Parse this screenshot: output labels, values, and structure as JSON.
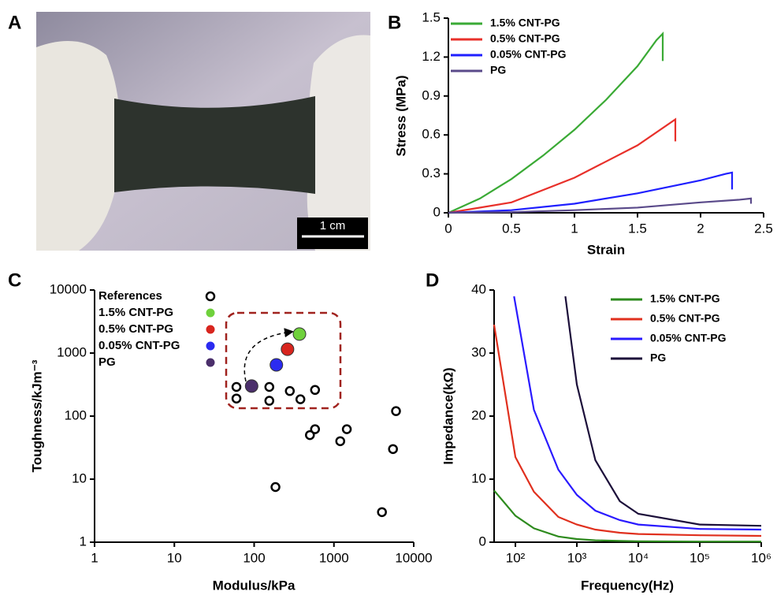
{
  "photo": {
    "panel_label": "A",
    "scale_bar_label": "1 cm"
  },
  "chart_data": [
    {
      "type": "line",
      "panel_label": "B",
      "x_label": "Strain",
      "y_label": "Stress (MPa)",
      "xlim": [
        0,
        2.5
      ],
      "ylim": [
        0,
        1.5
      ],
      "xticks": [
        0,
        0.5,
        1,
        1.5,
        2,
        2.5
      ],
      "yticks": [
        0,
        0.3,
        0.6,
        0.9,
        1.2,
        1.5
      ],
      "legend": "top-left",
      "series": [
        {
          "name": "1.5% CNT-PG",
          "color": "#3aaa35",
          "x": [
            0,
            0.25,
            0.5,
            0.75,
            1.0,
            1.25,
            1.5,
            1.65,
            1.69,
            1.7,
            1.7
          ],
          "values": [
            0,
            0.11,
            0.26,
            0.44,
            0.64,
            0.87,
            1.13,
            1.33,
            1.37,
            1.38,
            1.17
          ]
        },
        {
          "name": "0.5% CNT-PG",
          "color": "#e8302a",
          "x": [
            0,
            0.5,
            1.0,
            1.5,
            1.8,
            1.8
          ],
          "values": [
            0,
            0.08,
            0.27,
            0.52,
            0.72,
            0.55
          ]
        },
        {
          "name": "0.05% CNT-PG",
          "color": "#1f1fff",
          "x": [
            0,
            0.5,
            1.0,
            1.5,
            2.0,
            2.2,
            2.25,
            2.25
          ],
          "values": [
            0,
            0.02,
            0.07,
            0.15,
            0.25,
            0.3,
            0.31,
            0.18
          ]
        },
        {
          "name": "PG",
          "color": "#5a4a8a",
          "x": [
            0,
            0.5,
            1.0,
            1.5,
            2.0,
            2.3,
            2.4,
            2.4
          ],
          "values": [
            0,
            0.005,
            0.02,
            0.04,
            0.08,
            0.1,
            0.11,
            0.07
          ]
        }
      ]
    },
    {
      "type": "scatter",
      "panel_label": "C",
      "x_label": "Modulus/kPa",
      "y_label": "Toughness/kJm⁻³",
      "xscale": "log",
      "yscale": "log",
      "xlim": [
        1,
        10000
      ],
      "ylim": [
        1,
        10000
      ],
      "xticks": [
        1,
        10,
        100,
        1000,
        10000
      ],
      "yticks": [
        1,
        10,
        100,
        1000,
        10000
      ],
      "legend": "top-left",
      "series": [
        {
          "name": "References",
          "color": "#000000",
          "marker": "open",
          "x": [
            60,
            60,
            155,
            155,
            280,
            380,
            580,
            500,
            580,
            1200,
            1450,
            5500,
            6000,
            185,
            4000
          ],
          "values": [
            290,
            190,
            290,
            175,
            250,
            185,
            260,
            50,
            62,
            40,
            62,
            30,
            120,
            7.5,
            3
          ]
        },
        {
          "name": "1.5% CNT-PG",
          "color": "#6fd13c",
          "marker": "filled",
          "x": [
            370
          ],
          "values": [
            2000
          ]
        },
        {
          "name": "0.5% CNT-PG",
          "color": "#d8251e",
          "marker": "filled",
          "x": [
            262
          ],
          "values": [
            1150
          ]
        },
        {
          "name": "0.05% CNT-PG",
          "color": "#2b2bf0",
          "marker": "filled",
          "x": [
            190
          ],
          "values": [
            650
          ]
        },
        {
          "name": "PG",
          "color": "#4b2f6b",
          "marker": "filled",
          "x": [
            93
          ],
          "values": [
            300
          ]
        }
      ]
    },
    {
      "type": "line",
      "panel_label": "D",
      "x_label": "Frequency(Hz)",
      "y_label": "Impedance(kΩ)",
      "xscale": "log",
      "xlim": [
        45,
        1000000
      ],
      "ylim": [
        0,
        40
      ],
      "xticks": [
        {
          "value": 100,
          "label": "10²"
        },
        {
          "value": 1000,
          "label": "10³"
        },
        {
          "value": 10000,
          "label": "10⁴"
        },
        {
          "value": 100000,
          "label": "10⁵"
        },
        {
          "value": 1000000,
          "label": "10⁶"
        }
      ],
      "yticks": [
        0,
        10,
        20,
        30,
        40
      ],
      "legend": "top-right",
      "series": [
        {
          "name": "1.5% CNT-PG",
          "color": "#2e8b1e",
          "x": [
            45,
            100,
            200,
            500,
            1000,
            2000,
            5000,
            10000,
            100000,
            1000000
          ],
          "values": [
            8.2,
            4.2,
            2.2,
            0.9,
            0.5,
            0.3,
            0.2,
            0.15,
            0.1,
            0.1
          ]
        },
        {
          "name": "0.5% CNT-PG",
          "color": "#e0301e",
          "x": [
            45,
            100,
            200,
            500,
            1000,
            2000,
            5000,
            10000,
            100000,
            1000000
          ],
          "values": [
            34.5,
            13.5,
            8,
            4,
            2.8,
            2,
            1.5,
            1.3,
            1.1,
            1.0
          ]
        },
        {
          "name": "0.05% CNT-PG",
          "color": "#2a1aff",
          "x": [
            95,
            200,
            500,
            1000,
            2000,
            5000,
            10000,
            100000,
            1000000
          ],
          "values": [
            39,
            21,
            11.5,
            7.5,
            5,
            3.5,
            2.8,
            2.1,
            2.0
          ]
        },
        {
          "name": "PG",
          "color": "#1c0f3a",
          "x": [
            650,
            1000,
            2000,
            5000,
            10000,
            100000,
            1000000
          ],
          "values": [
            39,
            25,
            13,
            6.5,
            4.5,
            2.8,
            2.6
          ]
        }
      ]
    }
  ]
}
